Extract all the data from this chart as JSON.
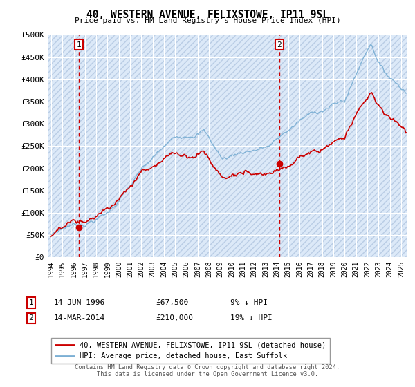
{
  "title": "40, WESTERN AVENUE, FELIXSTOWE, IP11 9SL",
  "subtitle": "Price paid vs. HM Land Registry's House Price Index (HPI)",
  "sale1_price": 67500,
  "sale1_annotation": "14-JUN-1996",
  "sale1_pct": "9% ↓ HPI",
  "sale2_price": 210000,
  "sale2_annotation": "14-MAR-2014",
  "sale2_pct": "19% ↓ HPI",
  "sale1_yr": 1996.458,
  "sale2_yr": 2014.208,
  "ylim": [
    0,
    500000
  ],
  "xlim": [
    1993.7,
    2025.5
  ],
  "yticks": [
    0,
    50000,
    100000,
    150000,
    200000,
    250000,
    300000,
    350000,
    400000,
    450000,
    500000
  ],
  "background_color": "#dce9f8",
  "hatch_color": "#b8cce4",
  "line_color_sold": "#cc0000",
  "line_color_hpi": "#7bafd4",
  "sale_dot_color": "#cc0000",
  "marker_box_color": "#cc0000",
  "dashed_line_color": "#cc0000",
  "legend_label_sold": "40, WESTERN AVENUE, FELIXSTOWE, IP11 9SL (detached house)",
  "legend_label_hpi": "HPI: Average price, detached house, East Suffolk",
  "footer": "Contains HM Land Registry data © Crown copyright and database right 2024.\nThis data is licensed under the Open Government Licence v3.0."
}
